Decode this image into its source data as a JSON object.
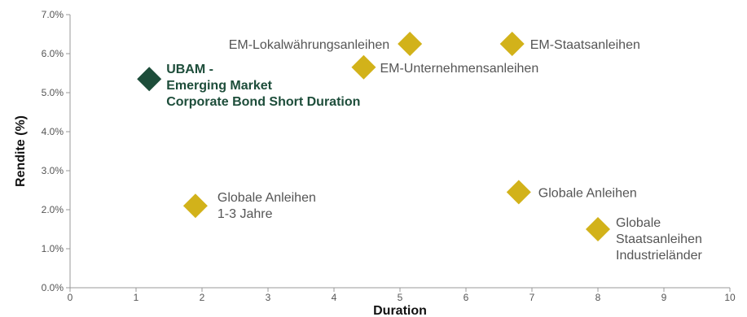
{
  "chart_data": {
    "type": "scatter",
    "title": "",
    "xlabel": "Duration",
    "ylabel": "Rendite (%)",
    "xlim": [
      0,
      10
    ],
    "ylim": [
      0,
      7
    ],
    "x_ticks": [
      0,
      1,
      2,
      3,
      4,
      5,
      6,
      7,
      8,
      9,
      10
    ],
    "x_tick_labels": [
      "0",
      "1",
      "2",
      "3",
      "4",
      "5",
      "6",
      "7",
      "8",
      "9",
      "10"
    ],
    "y_ticks": [
      0,
      1,
      2,
      3,
      4,
      5,
      6,
      7
    ],
    "y_tick_labels": [
      "0.0%",
      "1.0%",
      "2.0%",
      "3.0%",
      "4.0%",
      "5.0%",
      "6.0%",
      "7.0%"
    ],
    "grid": false,
    "legend": "none",
    "marker": "diamond",
    "colors": {
      "highlight": "#1d4d3a",
      "default": "#d2b21a",
      "label_highlight": "#1d4d3a",
      "label_default": "#555555",
      "axis": "#999999"
    },
    "points": [
      {
        "label_lines": [
          "UBAM -",
          "Emerging Market",
          "Corporate Bond Short Duration"
        ],
        "x": 1.2,
        "y": 5.35,
        "highlight": true,
        "label_side": "right"
      },
      {
        "label_lines": [
          "EM-Lokalwährungsanleihen"
        ],
        "x": 5.15,
        "y": 6.25,
        "highlight": false,
        "label_side": "left"
      },
      {
        "label_lines": [
          "EM-Staatsanleihen"
        ],
        "x": 6.7,
        "y": 6.25,
        "highlight": false,
        "label_side": "right"
      },
      {
        "label_lines": [
          "EM-Unternehmensanleihen"
        ],
        "x": 4.45,
        "y": 5.65,
        "highlight": false,
        "label_side": "right"
      },
      {
        "label_lines": [
          "Globale Anleihen",
          "1-3 Jahre"
        ],
        "x": 1.9,
        "y": 2.1,
        "highlight": false,
        "label_side": "right"
      },
      {
        "label_lines": [
          "Globale Anleihen"
        ],
        "x": 6.8,
        "y": 2.45,
        "highlight": false,
        "label_side": "right"
      },
      {
        "label_lines": [
          "Globale",
          "Staatsanleihen",
          "Industrieländer"
        ],
        "x": 8.0,
        "y": 1.5,
        "highlight": false,
        "label_side": "right"
      }
    ]
  }
}
